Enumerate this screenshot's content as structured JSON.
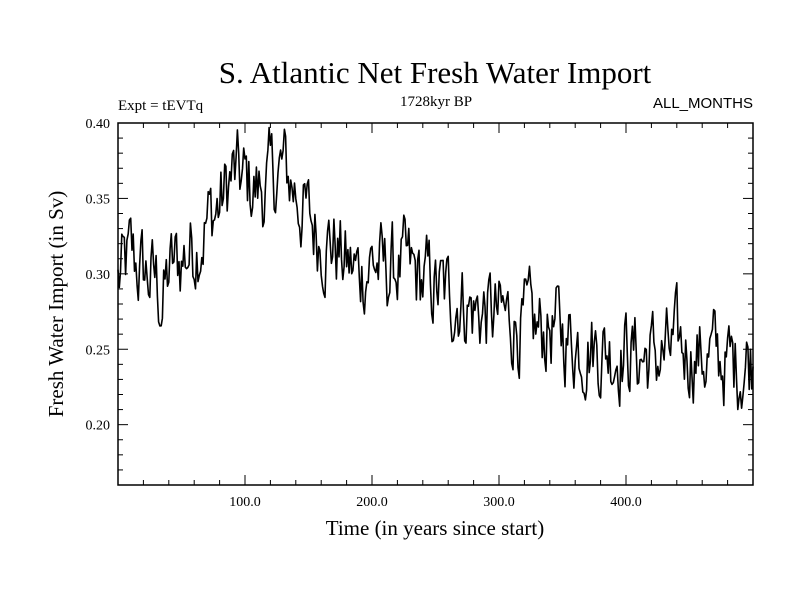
{
  "chart_data": {
    "type": "line",
    "title": "S. Atlantic Net Fresh Water Import",
    "subtitle_left": "Expt = tEVTq",
    "subtitle_center": "1728kyr BP",
    "subtitle_right": "ALL_MONTHS",
    "xlabel": "Time (in years since start)",
    "ylabel": "Fresh Water Import (in Sv)",
    "xlim": [
      0,
      500
    ],
    "ylim": [
      0.16,
      0.4
    ],
    "xticks": [
      100,
      200,
      300,
      400
    ],
    "xtick_labels": [
      "100.0",
      "200.0",
      "300.0",
      "400.0"
    ],
    "yticks": [
      0.2,
      0.25,
      0.3,
      0.35,
      0.4
    ],
    "ytick_labels": [
      "0.20",
      "0.25",
      "0.30",
      "0.35",
      "0.40"
    ],
    "series": [
      {
        "name": "Net Fresh Water Import",
        "x": [
          0,
          10,
          20,
          30,
          35,
          40,
          50,
          60,
          70,
          80,
          90,
          100,
          110,
          120,
          130,
          140,
          150,
          160,
          170,
          180,
          190,
          200,
          210,
          220,
          230,
          240,
          250,
          260,
          270,
          280,
          290,
          300,
          310,
          320,
          330,
          340,
          350,
          360,
          370,
          380,
          390,
          400,
          410,
          420,
          430,
          440,
          450,
          460,
          470,
          480,
          490,
          500
        ],
        "values": [
          0.295,
          0.31,
          0.3,
          0.295,
          0.28,
          0.3,
          0.31,
          0.32,
          0.335,
          0.345,
          0.365,
          0.36,
          0.355,
          0.36,
          0.37,
          0.355,
          0.335,
          0.325,
          0.32,
          0.305,
          0.3,
          0.31,
          0.3,
          0.305,
          0.3,
          0.295,
          0.29,
          0.285,
          0.285,
          0.275,
          0.275,
          0.27,
          0.27,
          0.265,
          0.26,
          0.265,
          0.26,
          0.255,
          0.255,
          0.25,
          0.25,
          0.25,
          0.245,
          0.245,
          0.245,
          0.25,
          0.25,
          0.245,
          0.245,
          0.24,
          0.24,
          0.245
        ]
      }
    ]
  }
}
